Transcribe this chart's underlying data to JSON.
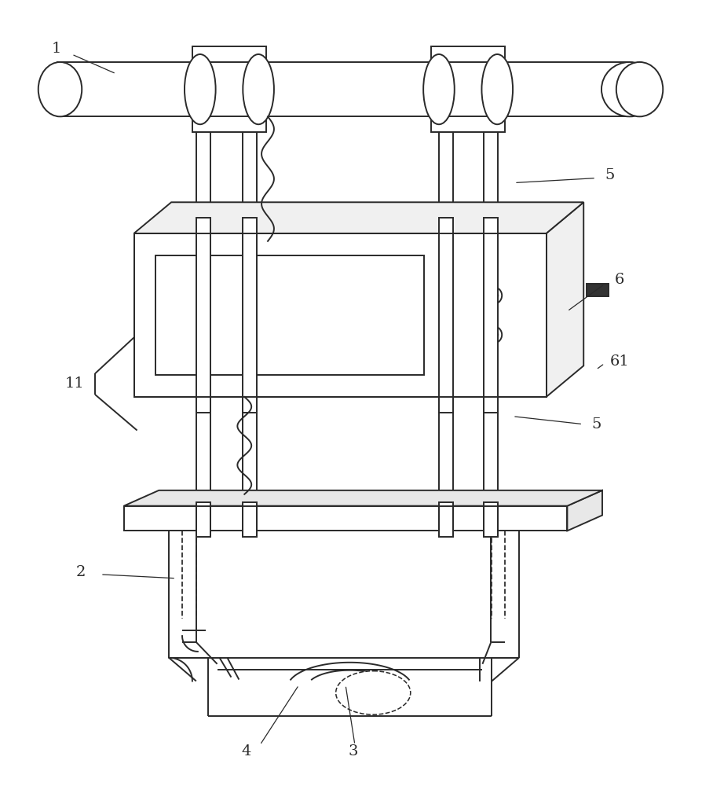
{
  "bg": "#ffffff",
  "lc": "#2a2a2a",
  "lw": 1.4,
  "fw": 8.94,
  "fh": 10.0,
  "fs": 14
}
